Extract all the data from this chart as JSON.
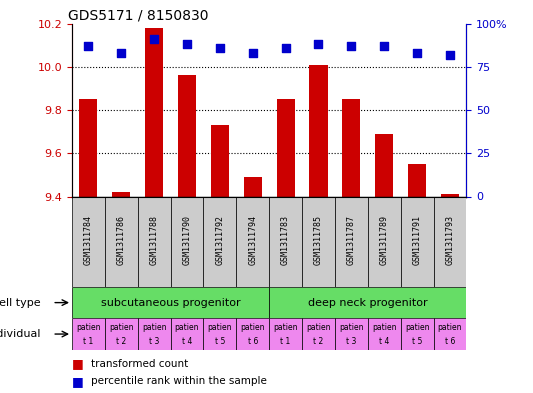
{
  "title": "GDS5171 / 8150830",
  "samples": [
    "GSM1311784",
    "GSM1311786",
    "GSM1311788",
    "GSM1311790",
    "GSM1311792",
    "GSM1311794",
    "GSM1311783",
    "GSM1311785",
    "GSM1311787",
    "GSM1311789",
    "GSM1311791",
    "GSM1311793"
  ],
  "red_values": [
    9.85,
    9.42,
    10.18,
    9.96,
    9.73,
    9.49,
    9.85,
    10.01,
    9.85,
    9.69,
    9.55,
    9.41
  ],
  "blue_values": [
    87,
    83,
    91,
    88,
    86,
    83,
    86,
    88,
    87,
    87,
    83,
    82
  ],
  "ylim_left": [
    9.4,
    10.2
  ],
  "ylim_right": [
    0,
    100
  ],
  "yticks_left": [
    9.4,
    9.6,
    9.8,
    10.0,
    10.2
  ],
  "yticks_right": [
    0,
    25,
    50,
    75,
    100
  ],
  "ytick_labels_right": [
    "0",
    "25",
    "50",
    "75",
    "100%"
  ],
  "bar_color": "#cc0000",
  "dot_color": "#0000cc",
  "cell_type_labels": [
    "subcutaneous progenitor",
    "deep neck progenitor"
  ],
  "cell_type_color": "#66dd66",
  "individual_labels": [
    "t 1",
    "t 2",
    "t 3",
    "t 4",
    "t 5",
    "t 6",
    "t 1",
    "t 2",
    "t 3",
    "t 4",
    "t 5",
    "t 6"
  ],
  "individual_prefix": "patien",
  "individual_color": "#ee88ee",
  "sample_box_color": "#cccccc",
  "tick_label_color_left": "#cc0000",
  "tick_label_color_right": "#0000cc",
  "bar_bottom": 9.4,
  "dot_marker": "s",
  "dot_size": 30,
  "legend_red_label": "transformed count",
  "legend_blue_label": "percentile rank within the sample"
}
